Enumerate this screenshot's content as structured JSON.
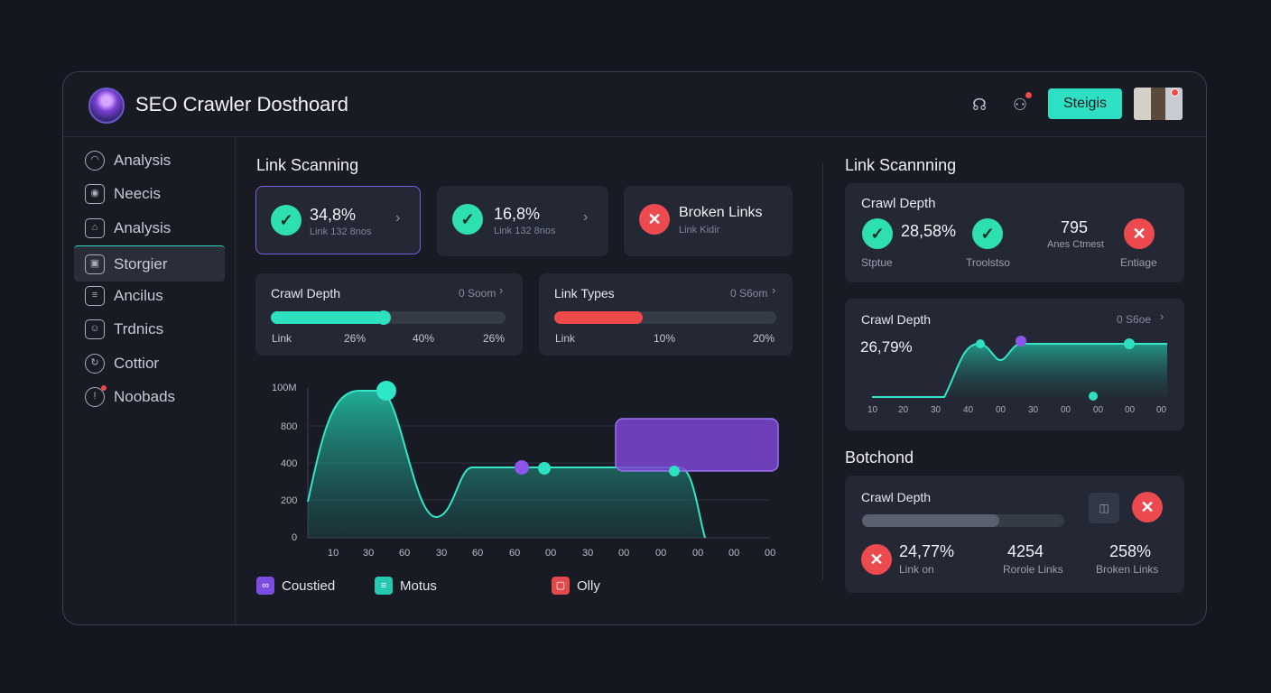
{
  "header": {
    "title": "SEO Crawler Dosthoard",
    "settings_label": "Steigis"
  },
  "sidebar": {
    "items": [
      {
        "label": "Analysis",
        "icon": "gauge-icon"
      },
      {
        "label": "Neecis",
        "icon": "camera-icon"
      },
      {
        "label": "Analysis",
        "icon": "home-icon"
      },
      {
        "label": "Storgier",
        "icon": "storage-icon",
        "active": true
      },
      {
        "label": "Ancilus",
        "icon": "document-icon"
      },
      {
        "label": "Trdnics",
        "icon": "user-icon"
      },
      {
        "label": "Cottior",
        "icon": "refresh-icon"
      },
      {
        "label": "Noobads",
        "icon": "alert-icon"
      }
    ]
  },
  "main": {
    "section_title": "Link Scanning",
    "stats": [
      {
        "value": "34,8%",
        "sub": "Link 132 8nos",
        "status": "ok"
      },
      {
        "value": "16,8%",
        "sub": "Link 132 8nos",
        "status": "ok"
      },
      {
        "value": "Broken Links",
        "sub": "Link Kidir",
        "status": "error"
      }
    ],
    "crawl_depth": {
      "title": "Crawl Depth",
      "meta": "0 Soom",
      "fill": 0.48,
      "labels": [
        "Link",
        "26%",
        "40%",
        "26%"
      ]
    },
    "link_types": {
      "title": "Link Types",
      "meta": "0 S6om",
      "fill": 0.4,
      "labels": [
        "Link",
        "10%",
        "20%"
      ]
    },
    "chart": {
      "y_ticks": [
        "100M",
        "800",
        "400",
        "200",
        "0"
      ],
      "x_ticks": [
        "10",
        "30",
        "60",
        "30",
        "60",
        "60",
        "00",
        "30",
        "00",
        "00",
        "00",
        "00",
        "00"
      ],
      "legend": [
        {
          "label": "Coustied",
          "color": "#7c4de0"
        },
        {
          "label": "Motus",
          "color": "#24c9b0"
        },
        {
          "label": "Olly",
          "color": "#e04a4a"
        }
      ]
    }
  },
  "right": {
    "section_title": "Link Scannning",
    "crawl_card": {
      "title": "Crawl Depth",
      "items": [
        {
          "value": "28,58%",
          "label": "Stptue",
          "status": "ok"
        },
        {
          "value": "",
          "label": "Troolstso",
          "status": "ok"
        },
        {
          "value": "795",
          "label": "Anes Ctmest",
          "status": "none"
        },
        {
          "value": "",
          "label": "Entiage",
          "status": "error"
        }
      ]
    },
    "depth_chart": {
      "title": "Crawl Depth",
      "meta": "0 S6oe",
      "value": "26,79%",
      "x_ticks": [
        "10",
        "20",
        "30",
        "40",
        "00",
        "30",
        "00",
        "00",
        "00",
        "00"
      ]
    },
    "section2_title": "Botchond",
    "bottom_card": {
      "title": "Crawl Depth",
      "fill": 0.68,
      "stats": [
        {
          "value": "24,77%",
          "label": "Link on"
        },
        {
          "value": "4254",
          "label": "Rorole Links"
        },
        {
          "value": "258%",
          "label": "Broken Links"
        }
      ]
    }
  }
}
